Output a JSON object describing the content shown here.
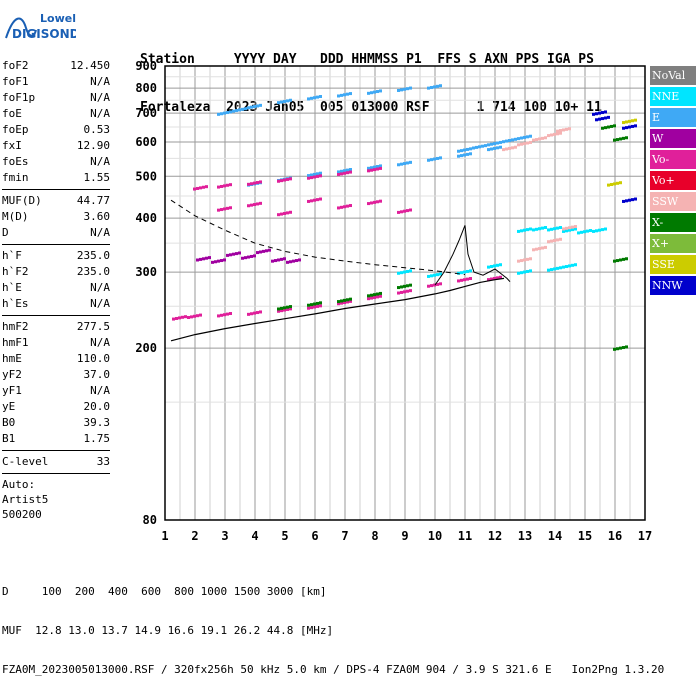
{
  "logo": {
    "line1": "Lowell",
    "line2": "DIGISONDE"
  },
  "header": {
    "row1": "Station     YYYY DAY   DDD HHMMSS P1  FFS S AXN PPS IGA PS",
    "row2": "Fortaleza  2023 Jan05  005 013000 RSF      1 714 100 10+ 11"
  },
  "params": {
    "group1": [
      {
        "name": "foF2",
        "value": "12.450"
      },
      {
        "name": "foF1",
        "value": "N/A"
      },
      {
        "name": "foF1p",
        "value": "N/A"
      },
      {
        "name": "foE",
        "value": "N/A"
      },
      {
        "name": "foEp",
        "value": "0.53"
      },
      {
        "name": "fxI",
        "value": "12.90"
      },
      {
        "name": "foEs",
        "value": "N/A"
      },
      {
        "name": "fmin",
        "value": "1.55"
      }
    ],
    "group2": [
      {
        "name": "MUF(D)",
        "value": "44.77"
      },
      {
        "name": "M(D)",
        "value": "3.60"
      },
      {
        "name": "D",
        "value": "N/A"
      }
    ],
    "group3": [
      {
        "name": "h`F",
        "value": "235.0"
      },
      {
        "name": "h`F2",
        "value": "235.0"
      },
      {
        "name": "h`E",
        "value": "N/A"
      },
      {
        "name": "h`Es",
        "value": "N/A"
      }
    ],
    "group4": [
      {
        "name": "hmF2",
        "value": "277.5"
      },
      {
        "name": "hmF1",
        "value": "N/A"
      },
      {
        "name": "hmE",
        "value": "110.0"
      },
      {
        "name": "yF2",
        "value": "37.0"
      },
      {
        "name": "yF1",
        "value": "N/A"
      },
      {
        "name": "yE",
        "value": "20.0"
      },
      {
        "name": "B0",
        "value": "39.3"
      },
      {
        "name": "B1",
        "value": "1.75"
      }
    ],
    "group5": [
      {
        "name": "C-level",
        "value": "33"
      }
    ],
    "auto_lines": [
      "Auto:",
      "Artist5",
      "500200"
    ]
  },
  "legend": [
    {
      "label": "NoVal",
      "color": "#7f7f7f"
    },
    {
      "label": "NNE",
      "color": "#00e5ff"
    },
    {
      "label": "E",
      "color": "#3fa9f5"
    },
    {
      "label": "W",
      "color": "#a000a0"
    },
    {
      "label": "Vo-",
      "color": "#e0209a"
    },
    {
      "label": "Vo+",
      "color": "#e8002a"
    },
    {
      "label": "SSW",
      "color": "#f5b3b3"
    },
    {
      "label": "X-",
      "color": "#007a00"
    },
    {
      "label": "X+",
      "color": "#7dbb3a"
    },
    {
      "label": "SSE",
      "color": "#cccc00"
    },
    {
      "label": "NNW",
      "color": "#0000cc"
    }
  ],
  "footer": {
    "line1": "D     100  200  400  600  800 1000 1500 3000 [km]",
    "line2": "MUF  12.8 13.0 13.7 14.9 16.6 19.1 26.2 44.8 [MHz]",
    "line3": "FZA0M_2023005013000.RSF / 320fx256h 50 kHz 5.0 km / DPS-4 FZA0M 904 / 3.9 S 321.6 E   Ion2Png 1.3.20"
  },
  "chart_data": {
    "type": "scatter",
    "x_ticks": [
      1,
      2,
      3,
      4,
      5,
      6,
      7,
      8,
      9,
      10,
      11,
      12,
      13,
      14,
      15,
      16,
      17
    ],
    "y_ticks": [
      80,
      200,
      300,
      400,
      500,
      600,
      700,
      800,
      900
    ],
    "xlim": [
      1,
      17
    ],
    "y_scale": "log",
    "ylim": [
      80,
      900
    ],
    "grid": true,
    "series": [
      {
        "color": "#3fa9f5",
        "x": [
          3.0,
          3.5,
          4.0,
          5.0,
          6.0,
          7.0,
          8.0,
          9.0,
          10.0
        ],
        "y": [
          700,
          712,
          725,
          745,
          760,
          772,
          783,
          795,
          805
        ]
      },
      {
        "color": "#3fa9f5",
        "x": [
          4.0,
          5.0,
          6.0,
          7.0,
          8.0,
          9.0,
          10.0,
          11.0,
          12.0
        ],
        "y": [
          480,
          492,
          505,
          515,
          525,
          535,
          548,
          560,
          580
        ]
      },
      {
        "color": "#e0209a",
        "x": [
          2.2,
          3.0,
          4.0,
          5.0,
          6.0,
          7.0,
          8.0
        ],
        "y": [
          470,
          475,
          482,
          490,
          498,
          508,
          518
        ]
      },
      {
        "color": "#3fa9f5",
        "x": [
          11.0,
          11.5,
          12.0,
          12.5,
          13.0
        ],
        "y": [
          575,
          585,
          595,
          605,
          615
        ]
      },
      {
        "color": "#f5b3b3",
        "x": [
          12.5,
          13.0,
          13.5,
          14.0,
          14.3
        ],
        "y": [
          580,
          595,
          610,
          625,
          640
        ]
      },
      {
        "color": "#a000a0",
        "x": [
          2.3,
          2.8,
          3.3,
          3.8,
          4.3,
          4.8,
          5.3
        ],
        "y": [
          322,
          318,
          330,
          325,
          335,
          320,
          318
        ]
      },
      {
        "color": "#e0209a",
        "x": [
          3.0,
          4.0,
          5.0,
          6.0,
          7.0,
          8.0,
          9.0
        ],
        "y": [
          420,
          430,
          410,
          440,
          425,
          435,
          415
        ]
      },
      {
        "color": "#e0209a",
        "x": [
          1.5,
          2.0,
          3.0,
          4.0,
          5.0,
          6.0,
          7.0,
          8.0,
          9.0,
          10.0,
          11.0,
          12.0
        ],
        "y": [
          235,
          237,
          239,
          241,
          245,
          249,
          255,
          262,
          270,
          280,
          288,
          290
        ]
      },
      {
        "color": "#007a00",
        "x": [
          5.0,
          6.0,
          7.0,
          8.0,
          9.0
        ],
        "y": [
          248,
          253,
          258,
          266,
          278
        ]
      },
      {
        "color": "#00e5ff",
        "x": [
          9.0,
          10.0,
          11.0,
          12.0,
          13.0,
          14.0,
          14.5
        ],
        "y": [
          300,
          295,
          300,
          310,
          300,
          305,
          310
        ]
      },
      {
        "color": "#00e5ff",
        "x": [
          13.0,
          13.5,
          14.0,
          14.5,
          15.0,
          15.5
        ],
        "y": [
          375,
          378,
          378,
          375,
          372,
          375
        ]
      },
      {
        "color": "#f5b3b3",
        "x": [
          13.0,
          13.5,
          14.0,
          14.5
        ],
        "y": [
          320,
          340,
          355,
          380
        ]
      },
      {
        "color": "#0000cc",
        "x": [
          15.5,
          15.6,
          16.5,
          16.5
        ],
        "y": [
          700,
          680,
          440,
          650
        ]
      },
      {
        "color": "#007a00",
        "x": [
          15.8,
          16.2,
          16.2,
          16.2
        ],
        "y": [
          650,
          610,
          320,
          200
        ]
      },
      {
        "color": "#cccc00",
        "x": [
          16.5,
          16.0
        ],
        "y": [
          670,
          480
        ]
      }
    ],
    "profile_line": {
      "x": [
        1.2,
        2,
        3,
        4,
        5,
        6,
        7,
        8,
        9,
        10,
        10.5,
        11,
        11.5,
        12,
        12.3
      ],
      "y": [
        208,
        215,
        222,
        228,
        234,
        240,
        247,
        253,
        259,
        267,
        272,
        278,
        284,
        288,
        290
      ]
    },
    "dashed_line": {
      "x": [
        1.2,
        2,
        3,
        4,
        5,
        6,
        7,
        8,
        9,
        10,
        11
      ],
      "y": [
        440,
        405,
        375,
        350,
        335,
        325,
        318,
        312,
        307,
        302,
        296
      ]
    },
    "trace_line": {
      "x": [
        10.0,
        10.3,
        10.6,
        10.8,
        11.0,
        11.1,
        11.3,
        11.6,
        12.0,
        12.4,
        12.5
      ],
      "y": [
        280,
        300,
        330,
        355,
        385,
        330,
        300,
        295,
        305,
        290,
        285
      ]
    }
  }
}
